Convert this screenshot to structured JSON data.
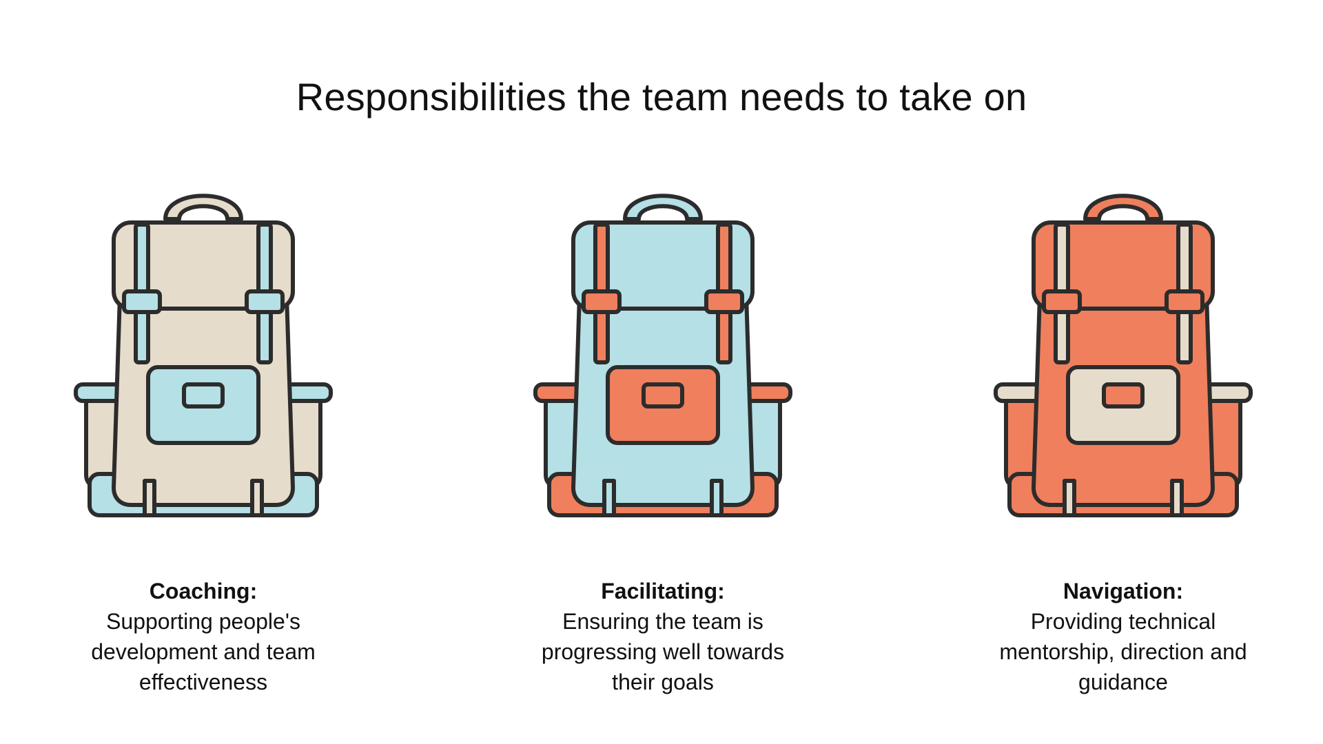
{
  "page": {
    "title": "Responsibilities the team needs to take on"
  },
  "colors": {
    "beige": "#e6dccb",
    "blue": "#b4e0e6",
    "orange": "#f07f5d",
    "outline": "#2c2c2c"
  },
  "cards": [
    {
      "title": "Coaching:",
      "description": "Supporting people's development and team effectiveness",
      "icon": "backpack-icon",
      "body_color": "beige",
      "accent_color": "blue"
    },
    {
      "title": "Facilitating:",
      "description": "Ensuring the team is progressing well towards their goals",
      "icon": "backpack-icon",
      "body_color": "blue",
      "accent_color": "orange"
    },
    {
      "title": "Navigation:",
      "description": "Providing technical mentorship, direction and guidance",
      "icon": "backpack-icon",
      "body_color": "orange",
      "accent_color": "beige"
    }
  ]
}
